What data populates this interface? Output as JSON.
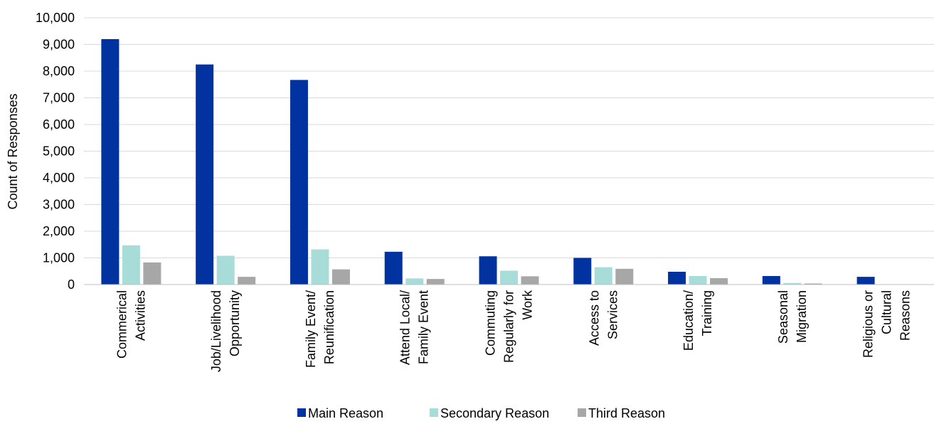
{
  "chart_data": {
    "type": "bar",
    "title": "",
    "ylabel": "Count of Responses",
    "xlabel": "",
    "ylim": [
      0,
      10000
    ],
    "yticks": [
      0,
      1000,
      2000,
      3000,
      4000,
      5000,
      6000,
      7000,
      8000,
      9000,
      10000
    ],
    "ytick_labels": [
      "0",
      "1,000",
      "2,000",
      "3,000",
      "4,000",
      "5,000",
      "6,000",
      "7,000",
      "8,000",
      "9,000",
      "10,000"
    ],
    "grid": true,
    "legend_position": "bottom",
    "categories": [
      [
        "Commerical",
        "Activities"
      ],
      [
        "Job/Livelihood",
        "Opportunity"
      ],
      [
        "Family Event/",
        "Reunification"
      ],
      [
        "Attend Local/",
        "Family Event"
      ],
      [
        "Commuting",
        "Regularly for",
        "Work"
      ],
      [
        "Access to",
        "Services"
      ],
      [
        "Education/",
        "Training"
      ],
      [
        "Seasonal",
        "Migration"
      ],
      [
        "Religious or",
        "Cultural",
        "Reasons"
      ]
    ],
    "series": [
      {
        "name": "Main Reason",
        "color": "#0033a0",
        "values": [
          9200,
          8250,
          7670,
          1230,
          1060,
          1000,
          480,
          320,
          290
        ]
      },
      {
        "name": "Secondary Reason",
        "color": "#a8dcd9",
        "values": [
          1470,
          1080,
          1320,
          230,
          520,
          650,
          320,
          60,
          0
        ]
      },
      {
        "name": "Third Reason",
        "color": "#a7a7a7",
        "values": [
          830,
          290,
          570,
          210,
          310,
          590,
          240,
          40,
          0
        ]
      }
    ]
  }
}
